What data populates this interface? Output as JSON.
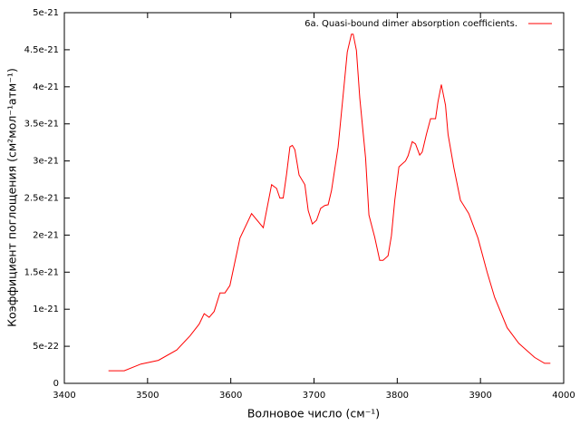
{
  "chart_data": {
    "type": "line",
    "xlabel": "Волновое число (см⁻¹)",
    "ylabel": "Коэффициент поглощения (см²мол⁻¹атм⁻¹)",
    "xlim": [
      3400,
      4000
    ],
    "xticks": [
      3400,
      3500,
      3600,
      3700,
      3800,
      3900,
      4000
    ],
    "ylim": [
      0,
      5e-21
    ],
    "yticks": [
      0,
      5e-22,
      1e-21,
      1.5e-21,
      2e-21,
      2.5e-21,
      3e-21,
      3.5e-21,
      4e-21,
      4.5e-21,
      5e-21
    ],
    "legend": "top-right",
    "series": [
      {
        "name": "6a. Quasi-bound dimer absorption coefficients.",
        "color": "#ff0000",
        "x": [
          3453,
          3472,
          3492,
          3513,
          3535,
          3551,
          3562,
          3568,
          3574,
          3580,
          3587,
          3593,
          3599,
          3611,
          3625,
          3639,
          3649,
          3655,
          3659,
          3663,
          3667,
          3671,
          3674,
          3677,
          3682,
          3689,
          3693,
          3698,
          3703,
          3708,
          3713,
          3717,
          3721,
          3729,
          3736,
          3740,
          3745,
          3747,
          3751,
          3755,
          3762,
          3766,
          3773,
          3779,
          3783,
          3789,
          3793,
          3797,
          3802,
          3810,
          3813,
          3818,
          3822,
          3827,
          3830,
          3835,
          3840,
          3846,
          3849,
          3853,
          3858,
          3861,
          3868,
          3876,
          3886,
          3897,
          3908,
          3917,
          3932,
          3946,
          3965,
          3977,
          3984
        ],
        "values": [
          1.7e-22,
          1.7e-22,
          2.6e-22,
          3.1e-22,
          4.5e-22,
          6.4e-22,
          8e-22,
          9.4e-22,
          8.9e-22,
          9.7e-22,
          1.22e-21,
          1.22e-21,
          1.32e-21,
          1.96e-21,
          2.29e-21,
          2.1e-21,
          2.68e-21,
          2.63e-21,
          2.5e-21,
          2.5e-21,
          2.82e-21,
          3.19e-21,
          3.21e-21,
          3.15e-21,
          2.81e-21,
          2.68e-21,
          2.33e-21,
          2.15e-21,
          2.2e-21,
          2.36e-21,
          2.4e-21,
          2.41e-21,
          2.6e-21,
          3.19e-21,
          4.01e-21,
          4.47e-21,
          4.71e-21,
          4.71e-21,
          4.49e-21,
          3.85e-21,
          3.04e-21,
          2.27e-21,
          1.97e-21,
          1.66e-21,
          1.66e-21,
          1.72e-21,
          1.99e-21,
          2.47e-21,
          2.92e-21,
          3e-21,
          3.07e-21,
          3.26e-21,
          3.23e-21,
          3.08e-21,
          3.12e-21,
          3.36e-21,
          3.57e-21,
          3.57e-21,
          3.8e-21,
          4.03e-21,
          3.75e-21,
          3.36e-21,
          2.91e-21,
          2.47e-21,
          2.29e-21,
          1.96e-21,
          1.5e-21,
          1.16e-21,
          7.5e-22,
          5.4e-22,
          3.5e-22,
          2.7e-22,
          2.7e-22
        ]
      }
    ]
  }
}
